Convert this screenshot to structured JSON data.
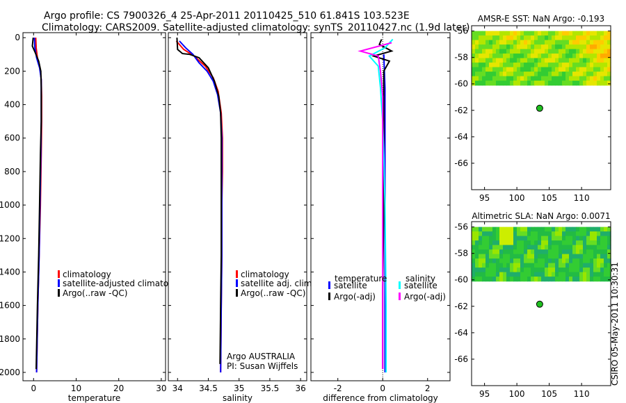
{
  "header": {
    "line1": "Argo profile: CS 7900326_4 25-Apr-2011 20110425_510 61.841S 103.523E",
    "line2": "Climatology: CARS2009. Satellite-adjusted climatology: synTS_20110427.nc (1.9d later)"
  },
  "credit": "CSIRO 05-May-2011 10:30:31",
  "colors": {
    "red": "#ff0000",
    "blue": "#0000ff",
    "black": "#000000",
    "cyan": "#00ffff",
    "magenta": "#ff00ff",
    "marker": "#1fbf1f"
  },
  "chart_data": [
    {
      "type": "line",
      "xlabel": "temperature",
      "ylim": [
        2050,
        -30
      ],
      "xlim": [
        -2.5,
        31
      ],
      "yticks": [
        0,
        200,
        400,
        600,
        800,
        1000,
        1200,
        1400,
        1600,
        1800,
        2000
      ],
      "xticks": [
        0,
        10,
        20,
        30
      ],
      "legend": {
        "placement": "lower-right",
        "entries": [
          "climatology",
          "satellite-adjusted climatolog",
          "Argo(..raw -QC)"
        ]
      },
      "series": [
        {
          "name": "climatology",
          "color": "#ff0000",
          "points": [
            [
              0.5,
              0
            ],
            [
              0.6,
              60
            ],
            [
              0.9,
              120
            ],
            [
              1.5,
              180
            ],
            [
              1.8,
              250
            ],
            [
              1.9,
              350
            ],
            [
              1.9,
              500
            ],
            [
              1.8,
              700
            ],
            [
              1.6,
              1000
            ],
            [
              1.3,
              1300
            ],
            [
              1.0,
              1600
            ],
            [
              0.7,
              2000
            ]
          ]
        },
        {
          "name": "satellite-adjusted climatolog",
          "color": "#0000ff",
          "points": [
            [
              0.2,
              0
            ],
            [
              0.3,
              60
            ],
            [
              0.7,
              120
            ],
            [
              1.4,
              180
            ],
            [
              1.8,
              250
            ],
            [
              1.8,
              350
            ],
            [
              1.8,
              500
            ],
            [
              1.7,
              700
            ],
            [
              1.5,
              1000
            ],
            [
              1.3,
              1300
            ],
            [
              1.0,
              1600
            ],
            [
              0.7,
              2000
            ]
          ]
        },
        {
          "name": "Argo(..raw -QC)",
          "color": "#000000",
          "points": [
            [
              -0.1,
              0
            ],
            [
              -0.3,
              50
            ],
            [
              0.4,
              90
            ],
            [
              1.2,
              140
            ],
            [
              1.7,
              200
            ],
            [
              1.8,
              300
            ],
            [
              1.8,
              500
            ],
            [
              1.6,
              700
            ],
            [
              1.4,
              1000
            ],
            [
              1.2,
              1300
            ],
            [
              0.9,
              1600
            ],
            [
              0.6,
              1980
            ]
          ]
        }
      ]
    },
    {
      "type": "line",
      "xlabel": "salinity",
      "ylim": [
        2050,
        -30
      ],
      "xlim": [
        33.85,
        36.1
      ],
      "xticks": [
        34,
        34.5,
        35,
        35.5,
        36
      ],
      "legend": {
        "placement": "lower-right",
        "entries": [
          "climatology",
          "satellite adj. clim.",
          "Argo(..raw -QC)"
        ]
      },
      "annotation": [
        "Argo AUSTRALIA",
        "PI: Susan Wijffels"
      ],
      "series": [
        {
          "name": "climatology",
          "color": "#ff0000",
          "points": [
            [
              33.98,
              20
            ],
            [
              34.1,
              70
            ],
            [
              34.27,
              110
            ],
            [
              34.45,
              170
            ],
            [
              34.58,
              240
            ],
            [
              34.66,
              320
            ],
            [
              34.71,
              450
            ],
            [
              34.73,
              600
            ],
            [
              34.73,
              800
            ],
            [
              34.72,
              1000
            ],
            [
              34.72,
              1300
            ],
            [
              34.71,
              1600
            ],
            [
              34.7,
              2000
            ]
          ]
        },
        {
          "name": "satellite adj. clim.",
          "color": "#0000ff",
          "points": [
            [
              34.03,
              20
            ],
            [
              34.13,
              60
            ],
            [
              34.25,
              100
            ],
            [
              34.35,
              150
            ],
            [
              34.48,
              200
            ],
            [
              34.58,
              260
            ],
            [
              34.65,
              340
            ],
            [
              34.7,
              450
            ],
            [
              34.72,
              600
            ],
            [
              34.72,
              800
            ],
            [
              34.72,
              1000
            ],
            [
              34.72,
              1300
            ],
            [
              34.71,
              1600
            ],
            [
              34.7,
              2000
            ]
          ]
        },
        {
          "name": "Argo(..raw -QC)",
          "color": "#000000",
          "points": [
            [
              33.99,
              0
            ],
            [
              34.0,
              70
            ],
            [
              34.08,
              95
            ],
            [
              34.2,
              100
            ],
            [
              34.35,
              120
            ],
            [
              34.5,
              180
            ],
            [
              34.6,
              260
            ],
            [
              34.67,
              350
            ],
            [
              34.7,
              450
            ],
            [
              34.71,
              600
            ],
            [
              34.71,
              800
            ],
            [
              34.71,
              1000
            ],
            [
              34.71,
              1300
            ],
            [
              34.7,
              1600
            ],
            [
              34.69,
              1950
            ]
          ]
        }
      ]
    },
    {
      "type": "line",
      "xlabel": "difference from climatology",
      "ylim": [
        2050,
        -30
      ],
      "xlim": [
        -3.2,
        3.0
      ],
      "xticks": [
        -2,
        0,
        2
      ],
      "legend": {
        "placement": "lower-center",
        "groups": [
          "temperature",
          "salinity"
        ],
        "entries": [
          "satellite",
          "Argo(-adj)",
          "satellite",
          "Argo(-adj)"
        ]
      },
      "series": [
        {
          "name": "temperature satellite",
          "color": "#0000ff",
          "points": [
            [
              0.05,
              100
            ],
            [
              0.1,
              300
            ],
            [
              0.1,
              500
            ],
            [
              0.1,
              800
            ],
            [
              0.1,
              1200
            ],
            [
              0.1,
              1600
            ],
            [
              0.1,
              2000
            ]
          ]
        },
        {
          "name": "temperature Argo(-adj)",
          "color": "#000000",
          "points": [
            [
              -0.05,
              10
            ],
            [
              -0.15,
              40
            ],
            [
              0.4,
              80
            ],
            [
              -0.4,
              110
            ],
            [
              0.3,
              140
            ],
            [
              0.05,
              200
            ],
            [
              0.05,
              500
            ],
            [
              0.05,
              1000
            ],
            [
              0.0,
              1500
            ],
            [
              0.0,
              1980
            ]
          ]
        },
        {
          "name": "salinity satellite",
          "color": "#00ffff",
          "points": [
            [
              0.45,
              10
            ],
            [
              0.1,
              60
            ],
            [
              -0.6,
              110
            ],
            [
              -0.2,
              170
            ],
            [
              -0.1,
              300
            ],
            [
              0.0,
              500
            ],
            [
              0.05,
              700
            ],
            [
              0.1,
              1000
            ],
            [
              0.15,
              1600
            ],
            [
              0.15,
              2000
            ]
          ]
        },
        {
          "name": "salinity Argo(-adj)",
          "color": "#ff00ff",
          "points": [
            [
              0.4,
              30
            ],
            [
              -1.0,
              80
            ],
            [
              -0.2,
              110
            ],
            [
              -0.1,
              200
            ],
            [
              0.0,
              350
            ],
            [
              0.0,
              600
            ],
            [
              0.0,
              1000
            ],
            [
              0.0,
              1500
            ],
            [
              0.0,
              1980
            ]
          ]
        }
      ]
    },
    {
      "type": "heatmap",
      "title": "AMSR-E SST: NaN Argo: -0.193",
      "xlim": [
        93,
        114.5
      ],
      "ylim": [
        -68,
        -55.6
      ],
      "xticks": [
        95,
        100,
        105,
        110
      ],
      "yticks": [
        -56,
        -58,
        -60,
        -62,
        -64,
        -66
      ],
      "data_extent_lat": [
        -56,
        -60.1
      ],
      "profile_location": {
        "lon": 103.523,
        "lat": -61.841
      }
    },
    {
      "type": "heatmap",
      "title": "Altimetric SLA: NaN Argo: 0.0071",
      "xlim": [
        93,
        114.5
      ],
      "ylim": [
        -68,
        -55.6
      ],
      "xticks": [
        95,
        100,
        105,
        110
      ],
      "yticks": [
        -56,
        -58,
        -60,
        -62,
        -64,
        -66
      ],
      "data_extent_lat": [
        -56,
        -60.1
      ],
      "profile_location": {
        "lon": 103.523,
        "lat": -61.841
      }
    }
  ]
}
